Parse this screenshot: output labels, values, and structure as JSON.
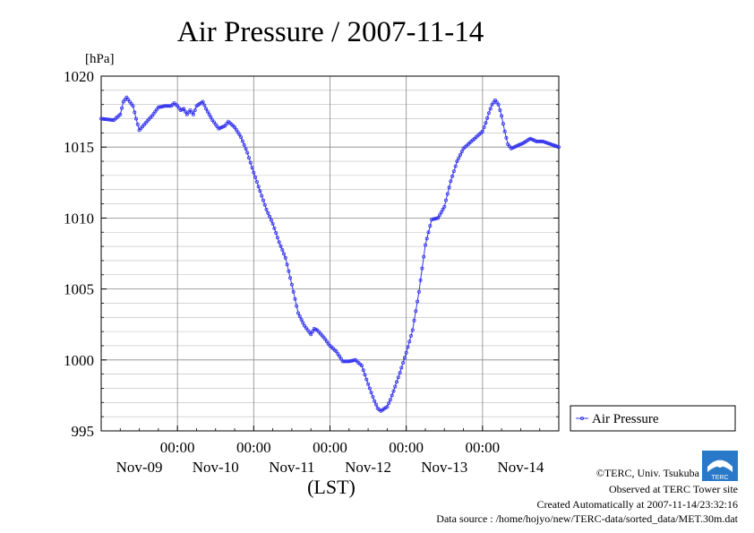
{
  "chart_data": {
    "type": "line",
    "title": "Air Pressure / 2007-11-14",
    "ylabel_unit": "[hPa]",
    "xlabel": "(LST)",
    "ylim": [
      995,
      1020
    ],
    "y_ticks": [
      "1020",
      "1015",
      "1010",
      "1005",
      "1000",
      "995"
    ],
    "x_time_labels": [
      "00:00",
      "00:00",
      "00:00",
      "00:00",
      "00:00"
    ],
    "x_date_labels": [
      "Nov-09",
      "Nov-10",
      "Nov-11",
      "Nov-12",
      "Nov-13",
      "Nov-14"
    ],
    "x_hours_range": [
      0,
      144
    ],
    "grid": true,
    "legend_position": "right",
    "series_color": "#3333ee",
    "series": [
      {
        "name": "Air Pressure",
        "points": [
          [
            0,
            1017.0
          ],
          [
            4,
            1016.9
          ],
          [
            6,
            1017.3
          ],
          [
            7,
            1018.2
          ],
          [
            8,
            1018.5
          ],
          [
            9,
            1018.2
          ],
          [
            10,
            1017.9
          ],
          [
            11,
            1017.0
          ],
          [
            12,
            1016.2
          ],
          [
            14,
            1016.7
          ],
          [
            16,
            1017.2
          ],
          [
            18,
            1017.8
          ],
          [
            20,
            1017.9
          ],
          [
            22,
            1017.9
          ],
          [
            23,
            1018.1
          ],
          [
            24,
            1017.9
          ],
          [
            25,
            1017.6
          ],
          [
            26,
            1017.7
          ],
          [
            27,
            1017.3
          ],
          [
            28,
            1017.6
          ],
          [
            29,
            1017.3
          ],
          [
            30,
            1017.9
          ],
          [
            32,
            1018.2
          ],
          [
            33,
            1017.7
          ],
          [
            35,
            1016.9
          ],
          [
            37,
            1016.3
          ],
          [
            39,
            1016.5
          ],
          [
            40,
            1016.8
          ],
          [
            42,
            1016.4
          ],
          [
            44,
            1015.7
          ],
          [
            46,
            1014.6
          ],
          [
            48,
            1013.2
          ],
          [
            50,
            1011.9
          ],
          [
            52,
            1010.6
          ],
          [
            54,
            1009.6
          ],
          [
            56,
            1008.3
          ],
          [
            58,
            1007.2
          ],
          [
            60,
            1005.3
          ],
          [
            62,
            1003.3
          ],
          [
            64,
            1002.4
          ],
          [
            66,
            1001.8
          ],
          [
            67,
            1002.2
          ],
          [
            68,
            1002.1
          ],
          [
            70,
            1001.6
          ],
          [
            72,
            1001.0
          ],
          [
            74,
            1000.6
          ],
          [
            76,
            999.9
          ],
          [
            78,
            999.9
          ],
          [
            80,
            1000.0
          ],
          [
            82,
            999.6
          ],
          [
            84,
            998.3
          ],
          [
            86,
            997.1
          ],
          [
            87,
            996.6
          ],
          [
            88,
            996.4
          ],
          [
            90,
            996.7
          ],
          [
            91,
            997.2
          ],
          [
            92,
            997.8
          ],
          [
            94,
            999.1
          ],
          [
            96,
            1000.5
          ],
          [
            98,
            1002.1
          ],
          [
            100,
            1004.8
          ],
          [
            102,
            1008.1
          ],
          [
            104,
            1009.9
          ],
          [
            106,
            1010.0
          ],
          [
            108,
            1010.8
          ],
          [
            110,
            1012.6
          ],
          [
            112,
            1014.0
          ],
          [
            114,
            1014.9
          ],
          [
            116,
            1015.3
          ],
          [
            118,
            1015.7
          ],
          [
            120,
            1016.1
          ],
          [
            121,
            1016.7
          ],
          [
            122,
            1017.4
          ],
          [
            123,
            1018.0
          ],
          [
            124,
            1018.3
          ],
          [
            125,
            1018.0
          ],
          [
            126,
            1017.2
          ],
          [
            127,
            1016.1
          ],
          [
            128,
            1015.2
          ],
          [
            129,
            1014.9
          ],
          [
            131,
            1015.1
          ],
          [
            133,
            1015.3
          ],
          [
            135,
            1015.6
          ],
          [
            137,
            1015.4
          ],
          [
            139,
            1015.4
          ],
          [
            144,
            1015.0
          ]
        ]
      }
    ]
  },
  "credits": {
    "copyright": "©TERC, Univ. Tsukuba",
    "observed": "Observed at TERC Tower site",
    "created": "Created Automatically at 2007-11-14/23:32:16",
    "source": "Data source : /home/hojyo/new/TERC-data/sorted_data/MET.30m.dat",
    "logo_text": "TERC"
  }
}
